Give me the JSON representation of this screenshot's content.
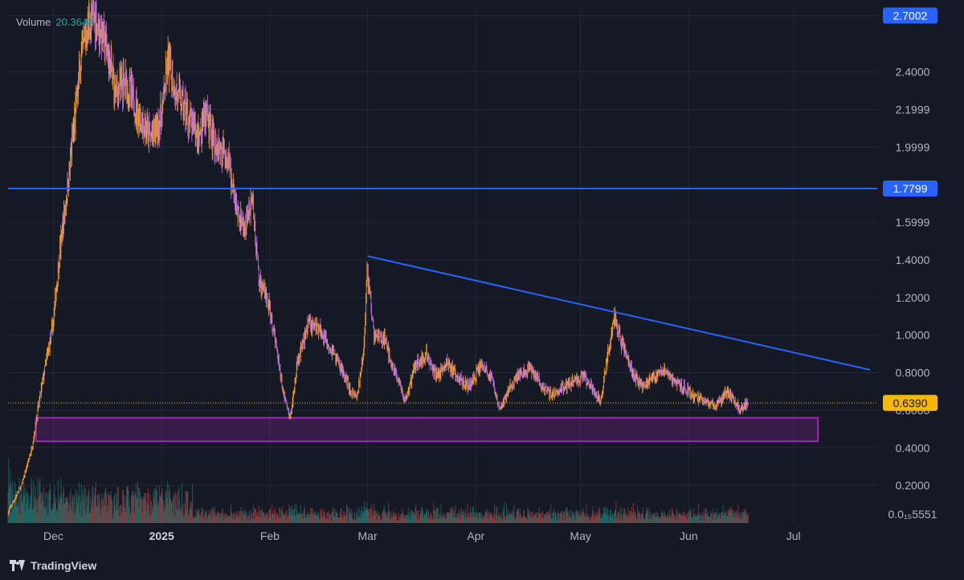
{
  "legend": {
    "label": "Volume",
    "value": "20.364K"
  },
  "brand": "TradingView",
  "colors": {
    "background": "#151924",
    "grid": "#232838",
    "axis_text": "#b2b5be",
    "line_blue": "#2962ff",
    "candle_up": "#ffa726",
    "candle_down": "#c272e0",
    "zone_border": "#9c27b0",
    "price_tag": "#f5b700",
    "volume_up": "#26a69a",
    "volume_down": "#ef5350"
  },
  "chart_data": {
    "type": "candlestick",
    "grid": true,
    "y_axis": {
      "position": "right",
      "ticks": [
        "0.2000",
        "0.4000",
        "0.6000",
        "0.8000",
        "1.0000",
        "1.2000",
        "1.4000",
        "1.5999",
        "1.7799",
        "1.9999",
        "2.1999",
        "2.4000",
        "2.7002"
      ],
      "tick_values": [
        0.2,
        0.4,
        0.6,
        0.8,
        1.0,
        1.2,
        1.4,
        1.6,
        1.78,
        2.0,
        2.2,
        2.4,
        2.7002
      ],
      "visible_tick_labels": [
        "0.2000",
        "0.4000",
        "0.8000",
        "1.0000",
        "1.2000",
        "1.4000",
        "1.5999",
        "1.9999",
        "2.1999",
        "2.4000"
      ],
      "bottom_label": "0.0₁₅5551",
      "range": [
        0.0,
        2.74
      ]
    },
    "x_axis": {
      "labels": [
        "Dec",
        "2025",
        "Feb",
        "Mar",
        "Apr",
        "May",
        "Jun",
        "Jul"
      ],
      "label_dates": [
        "2024-12-01",
        "2025-01-01",
        "2025-02-01",
        "2025-03-01",
        "2025-04-01",
        "2025-05-01",
        "2025-06-01",
        "2025-07-01"
      ],
      "bold_labels": [
        "2025"
      ],
      "range": [
        "2024-11-18",
        "2025-07-25"
      ]
    },
    "price_tags": [
      {
        "label": "2.7002",
        "value": 2.7002,
        "style": "blue"
      },
      {
        "label": "1.7799",
        "value": 1.7799,
        "style": "blue"
      },
      {
        "label": "0.6390",
        "value": 0.639,
        "style": "yellow"
      }
    ],
    "horizontal_lines": [
      {
        "value": 1.7799,
        "color": "#2962ff",
        "style": "solid"
      },
      {
        "value": 0.639,
        "color": "#f5b700",
        "style": "dotted"
      }
    ],
    "trendline": {
      "start": {
        "date": "2025-03-01",
        "value": 1.42
      },
      "end": {
        "date": "2025-07-23",
        "value": 0.815
      }
    },
    "zone": {
      "x_start": "2024-11-26",
      "x_end": "2025-07-08",
      "y_low": 0.435,
      "y_high": 0.56
    },
    "price_path": [
      [
        "2024-11-18",
        0.05
      ],
      [
        "2024-11-22",
        0.2
      ],
      [
        "2024-11-25",
        0.4
      ],
      [
        "2024-11-28",
        0.75
      ],
      [
        "2024-12-01",
        1.05
      ],
      [
        "2024-12-03",
        1.45
      ],
      [
        "2024-12-05",
        1.75
      ],
      [
        "2024-12-07",
        2.1
      ],
      [
        "2024-12-09",
        2.45
      ],
      [
        "2024-12-11",
        2.65
      ],
      [
        "2024-12-13",
        2.7
      ],
      [
        "2024-12-16",
        2.55
      ],
      [
        "2024-12-19",
        2.3
      ],
      [
        "2024-12-22",
        2.35
      ],
      [
        "2024-12-26",
        2.15
      ],
      [
        "2024-12-29",
        2.05
      ],
      [
        "2025-01-01",
        2.15
      ],
      [
        "2025-01-03",
        2.45
      ],
      [
        "2025-01-05",
        2.3
      ],
      [
        "2025-01-08",
        2.2
      ],
      [
        "2025-01-11",
        2.05
      ],
      [
        "2025-01-14",
        2.15
      ],
      [
        "2025-01-17",
        2.0
      ],
      [
        "2025-01-20",
        1.95
      ],
      [
        "2025-01-22",
        1.7
      ],
      [
        "2025-01-25",
        1.55
      ],
      [
        "2025-01-27",
        1.75
      ],
      [
        "2025-01-29",
        1.3
      ],
      [
        "2025-02-01",
        1.15
      ],
      [
        "2025-02-03",
        0.95
      ],
      [
        "2025-02-05",
        0.7
      ],
      [
        "2025-02-07",
        0.55
      ],
      [
        "2025-02-09",
        0.85
      ],
      [
        "2025-02-12",
        1.05
      ],
      [
        "2025-02-15",
        1.05
      ],
      [
        "2025-02-18",
        0.95
      ],
      [
        "2025-02-21",
        0.85
      ],
      [
        "2025-02-24",
        0.72
      ],
      [
        "2025-02-26",
        0.65
      ],
      [
        "2025-02-28",
        0.9
      ],
      [
        "2025-03-01",
        1.35
      ],
      [
        "2025-03-03",
        1.0
      ],
      [
        "2025-03-06",
        0.98
      ],
      [
        "2025-03-09",
        0.8
      ],
      [
        "2025-03-12",
        0.65
      ],
      [
        "2025-03-15",
        0.85
      ],
      [
        "2025-03-18",
        0.9
      ],
      [
        "2025-03-21",
        0.78
      ],
      [
        "2025-03-24",
        0.85
      ],
      [
        "2025-03-27",
        0.78
      ],
      [
        "2025-03-30",
        0.72
      ],
      [
        "2025-04-03",
        0.85
      ],
      [
        "2025-04-06",
        0.75
      ],
      [
        "2025-04-08",
        0.6
      ],
      [
        "2025-04-11",
        0.72
      ],
      [
        "2025-04-14",
        0.8
      ],
      [
        "2025-04-17",
        0.82
      ],
      [
        "2025-04-20",
        0.73
      ],
      [
        "2025-04-23",
        0.68
      ],
      [
        "2025-04-26",
        0.72
      ],
      [
        "2025-04-29",
        0.75
      ],
      [
        "2025-05-02",
        0.78
      ],
      [
        "2025-05-05",
        0.7
      ],
      [
        "2025-05-07",
        0.65
      ],
      [
        "2025-05-09",
        0.9
      ],
      [
        "2025-05-11",
        1.1
      ],
      [
        "2025-05-13",
        0.95
      ],
      [
        "2025-05-16",
        0.8
      ],
      [
        "2025-05-19",
        0.72
      ],
      [
        "2025-05-22",
        0.78
      ],
      [
        "2025-05-25",
        0.82
      ],
      [
        "2025-05-28",
        0.75
      ],
      [
        "2025-05-31",
        0.72
      ],
      [
        "2025-06-03",
        0.67
      ],
      [
        "2025-06-06",
        0.65
      ],
      [
        "2025-06-09",
        0.62
      ],
      [
        "2025-06-12",
        0.7
      ],
      [
        "2025-06-14",
        0.66
      ],
      [
        "2025-06-16",
        0.6
      ],
      [
        "2025-06-18",
        0.639
      ]
    ]
  }
}
